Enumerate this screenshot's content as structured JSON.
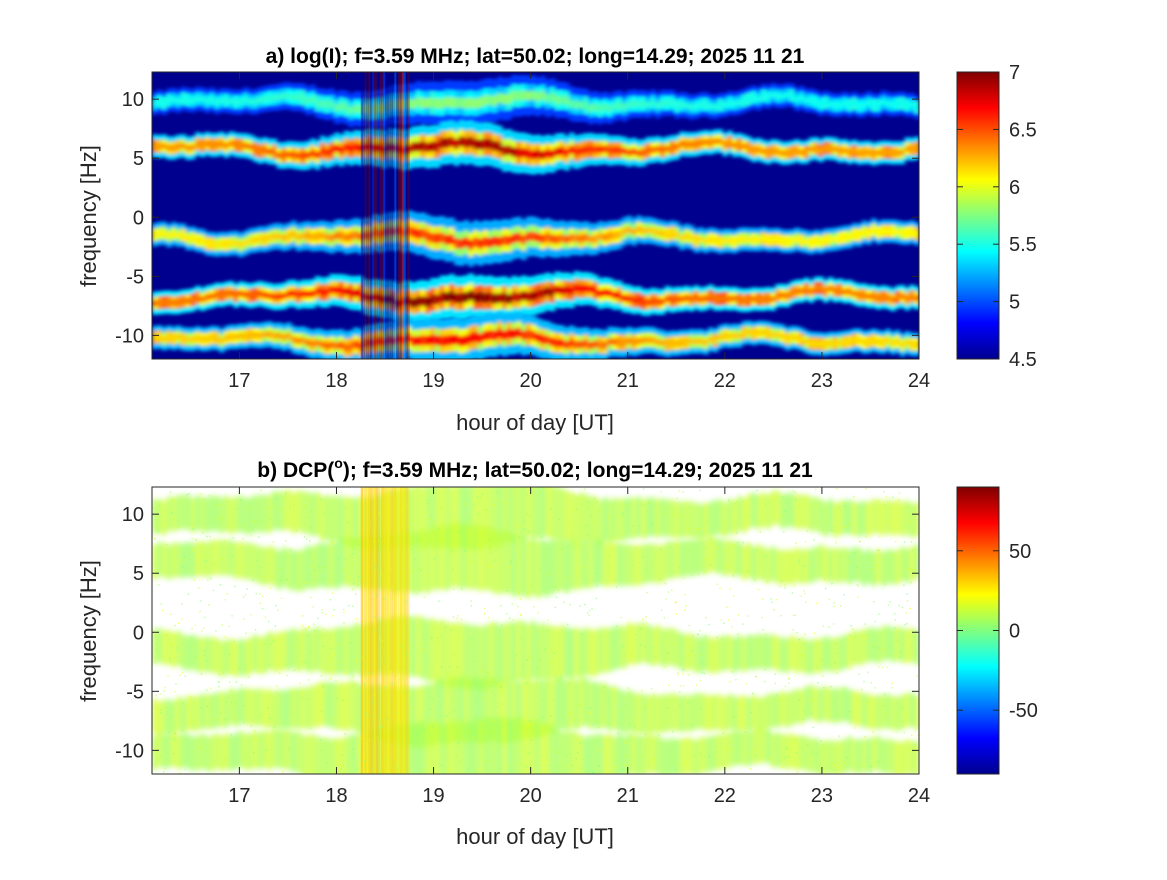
{
  "chart_data": [
    {
      "type": "heatmap",
      "title": "a) log(I); f=3.59 MHz;  lat=50.02; long=14.29; 2025 11 21",
      "xlabel": "hour of day [UT]",
      "ylabel": "frequency [Hz]",
      "xlim": [
        16.1,
        24
      ],
      "ylim": [
        -12,
        12.3
      ],
      "xticks": [
        17,
        18,
        19,
        20,
        21,
        22,
        23,
        24
      ],
      "yticks": [
        10,
        5,
        0,
        -5,
        -10
      ],
      "colorbar": {
        "range": [
          4.5,
          7
        ],
        "ticks": [
          7,
          6.5,
          6,
          5.5,
          5,
          4.5
        ],
        "colormap": "jet"
      },
      "background_color": "#00008f",
      "features": [
        {
          "kind": "band",
          "center_freq": 9.7,
          "peak_value": 5.8
        },
        {
          "kind": "band",
          "center_freq": 5.8,
          "peak_value": 6.9
        },
        {
          "kind": "band",
          "center_freq": -1.7,
          "peak_value": 6.6
        },
        {
          "kind": "band",
          "center_freq": -6.7,
          "peak_value": 7.0
        },
        {
          "kind": "band",
          "center_freq": -10.4,
          "peak_value": 6.7
        },
        {
          "kind": "vertical_stripe",
          "hour_range": [
            18.25,
            18.75
          ],
          "value": 5.0
        }
      ]
    },
    {
      "type": "heatmap",
      "title": "b) DCP(",
      "title_superscript": "o",
      "title_suffix": "); f=3.59 MHz;  lat=50.02; long=14.29; 2025 11 21",
      "xlabel": "hour of day [UT]",
      "ylabel": "frequency [Hz]",
      "xlim": [
        16.1,
        24
      ],
      "ylim": [
        -12,
        12.3
      ],
      "xticks": [
        17,
        18,
        19,
        20,
        21,
        22,
        23,
        24
      ],
      "yticks": [
        10,
        5,
        0,
        -5,
        -10
      ],
      "colorbar": {
        "range": [
          -90,
          90
        ],
        "ticks": [
          50,
          0,
          -50
        ],
        "colormap": "jet"
      },
      "background_color": "#ffffff",
      "features": [
        {
          "kind": "band",
          "center_freq": 9.8,
          "value": 10
        },
        {
          "kind": "band",
          "center_freq": 5.9,
          "value": 10
        },
        {
          "kind": "band",
          "center_freq": -1.6,
          "value": 10
        },
        {
          "kind": "band",
          "center_freq": -6.6,
          "value": 10
        },
        {
          "kind": "band",
          "center_freq": -10.3,
          "value": 10
        },
        {
          "kind": "vertical_stripe",
          "hour_range": [
            18.25,
            18.75
          ],
          "value": 30
        }
      ]
    }
  ]
}
